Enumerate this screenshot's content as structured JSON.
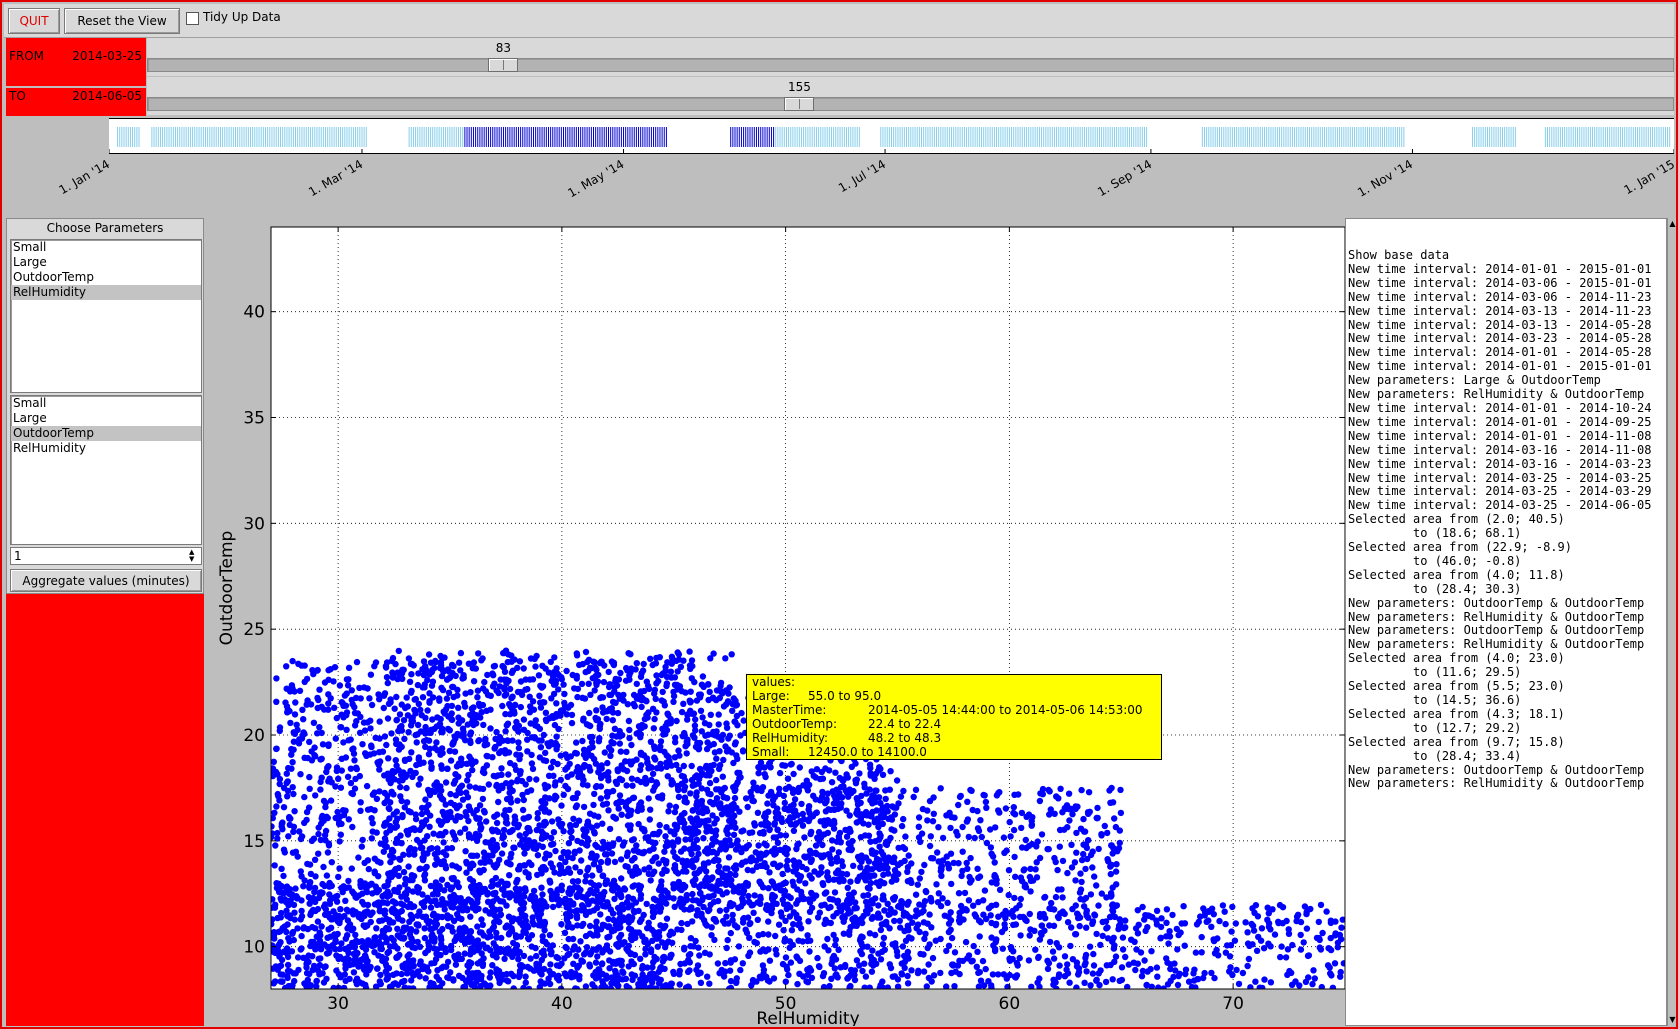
{
  "toolbar": {
    "quit_label": "QUIT",
    "reset_label": "Reset the View",
    "tidy_label": "Tidy Up Data",
    "tidy_checked": false
  },
  "range": {
    "from_label": "FROM",
    "from_date": "2014-03-25",
    "from_index": "83",
    "to_label": "TO",
    "to_date": "2014-06-05",
    "to_index": "155",
    "slider_max": 364
  },
  "timeline": {
    "month_labels": [
      "1. Jan '14",
      "1. Mar '14",
      "1. May '14",
      "1. Jul '14",
      "1. Sep '14",
      "1. Nov '14",
      "1. Jan '15"
    ],
    "tick_color": "#87ceeb",
    "selected_color": "#0000cc",
    "data_day_ranges": [
      [
        2,
        7
      ],
      [
        10,
        60
      ],
      [
        70,
        130
      ],
      [
        145,
        175
      ],
      [
        180,
        242
      ],
      [
        255,
        302
      ],
      [
        318,
        328
      ],
      [
        335,
        364
      ]
    ],
    "selected_day_range": [
      83,
      155
    ]
  },
  "params": {
    "title": "Choose Parameters",
    "x_options": [
      "Small",
      "Large",
      "OutdoorTemp",
      "RelHumidity"
    ],
    "x_selected": "RelHumidity",
    "y_options": [
      "Small",
      "Large",
      "OutdoorTemp",
      "RelHumidity"
    ],
    "y_selected": "OutdoorTemp",
    "aggregate_value": "1",
    "aggregate_label": "Aggregate values (minutes)"
  },
  "chart_data": {
    "type": "scatter",
    "xlabel": "RelHumidity",
    "ylabel": "OutdoorTemp",
    "xlim": [
      27,
      75
    ],
    "ylim": [
      8,
      44
    ],
    "x_ticks": [
      30,
      40,
      50,
      60,
      70
    ],
    "y_ticks": [
      10,
      15,
      20,
      25,
      30,
      35,
      40
    ],
    "grid": true,
    "point_color": "#0000ff",
    "point_clusters": [
      {
        "x_range": [
          27,
          55
        ],
        "y_range": [
          8,
          23.5
        ]
      },
      {
        "x_range": [
          32,
          48
        ],
        "y_range": [
          12,
          24
        ]
      },
      {
        "x_range": [
          45,
          65
        ],
        "y_range": [
          11,
          17.5
        ]
      },
      {
        "x_range": [
          55,
          75
        ],
        "y_range": [
          8,
          12
        ]
      },
      {
        "x_range": [
          27,
          45
        ],
        "y_range": [
          8,
          13
        ]
      }
    ]
  },
  "tooltip": {
    "header": "values:",
    "rows": [
      {
        "key": "Large:",
        "value": "55.0 to 95.0"
      },
      {
        "key": "MasterTime:",
        "value": "2014-05-05 14:44:00 to 2014-05-06 14:53:00"
      },
      {
        "key": "OutdoorTemp:",
        "value": "22.4 to 22.4"
      },
      {
        "key": "RelHumidity:",
        "value": "48.2 to 48.3"
      },
      {
        "key": "Small:",
        "value": "12450.0 to 14100.0"
      }
    ]
  },
  "log": [
    "Show base data",
    "New time interval: 2014-01-01 - 2015-01-01",
    "New time interval: 2014-03-06 - 2015-01-01",
    "New time interval: 2014-03-06 - 2014-11-23",
    "New time interval: 2014-03-13 - 2014-11-23",
    "New time interval: 2014-03-13 - 2014-05-28",
    "New time interval: 2014-03-23 - 2014-05-28",
    "New time interval: 2014-01-01 - 2014-05-28",
    "New time interval: 2014-01-01 - 2015-01-01",
    "New parameters: Large & OutdoorTemp",
    "New parameters: RelHumidity & OutdoorTemp",
    "New time interval: 2014-01-01 - 2014-10-24",
    "New time interval: 2014-01-01 - 2014-09-25",
    "New time interval: 2014-01-01 - 2014-11-08",
    "New time interval: 2014-03-16 - 2014-11-08",
    "New time interval: 2014-03-16 - 2014-03-23",
    "New time interval: 2014-03-25 - 2014-03-25",
    "New time interval: 2014-03-25 - 2014-03-29",
    "New time interval: 2014-03-25 - 2014-06-05",
    "Selected area from (2.0; 40.5)",
    "         to (18.6; 68.1)",
    "Selected area from (22.9; -8.9)",
    "         to (46.0; -0.8)",
    "Selected area from (4.0; 11.8)",
    "         to (28.4; 30.3)",
    "New parameters: OutdoorTemp & OutdoorTemp",
    "New parameters: RelHumidity & OutdoorTemp",
    "New parameters: OutdoorTemp & OutdoorTemp",
    "New parameters: RelHumidity & OutdoorTemp",
    "Selected area from (4.0; 23.0)",
    "         to (11.6; 29.5)",
    "Selected area from (5.5; 23.0)",
    "         to (14.5; 36.6)",
    "Selected area from (4.3; 18.1)",
    "         to (12.7; 29.2)",
    "Selected area from (9.7; 15.8)",
    "         to (28.4; 33.4)",
    "New parameters: OutdoorTemp & OutdoorTemp",
    "New parameters: RelHumidity & OutdoorTemp"
  ]
}
